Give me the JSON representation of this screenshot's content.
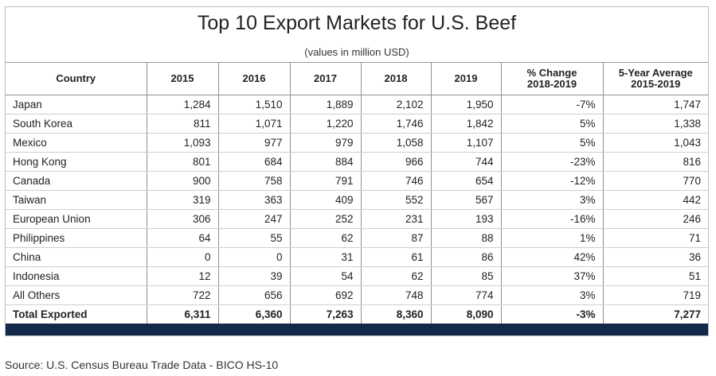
{
  "title": "Top 10 Export Markets for U.S. Beef",
  "subtitle": "(values in million USD)",
  "headers": {
    "country": "Country",
    "y2015": "2015",
    "y2016": "2016",
    "y2017": "2017",
    "y2018": "2018",
    "y2019": "2019",
    "pct_change_line1": "% Change",
    "pct_change_line2": "2018-2019",
    "avg_line1": "5-Year Average",
    "avg_line2": "2015-2019"
  },
  "rows": [
    {
      "country": "Japan",
      "y2015": "1,284",
      "y2016": "1,510",
      "y2017": "1,889",
      "y2018": "2,102",
      "y2019": "1,950",
      "pct": "-7%",
      "avg": "1,747"
    },
    {
      "country": "South Korea",
      "y2015": "811",
      "y2016": "1,071",
      "y2017": "1,220",
      "y2018": "1,746",
      "y2019": "1,842",
      "pct": "5%",
      "avg": "1,338"
    },
    {
      "country": "Mexico",
      "y2015": "1,093",
      "y2016": "977",
      "y2017": "979",
      "y2018": "1,058",
      "y2019": "1,107",
      "pct": "5%",
      "avg": "1,043"
    },
    {
      "country": "Hong Kong",
      "y2015": "801",
      "y2016": "684",
      "y2017": "884",
      "y2018": "966",
      "y2019": "744",
      "pct": "-23%",
      "avg": "816"
    },
    {
      "country": "Canada",
      "y2015": "900",
      "y2016": "758",
      "y2017": "791",
      "y2018": "746",
      "y2019": "654",
      "pct": "-12%",
      "avg": "770"
    },
    {
      "country": "Taiwan",
      "y2015": "319",
      "y2016": "363",
      "y2017": "409",
      "y2018": "552",
      "y2019": "567",
      "pct": "3%",
      "avg": "442"
    },
    {
      "country": "European Union",
      "y2015": "306",
      "y2016": "247",
      "y2017": "252",
      "y2018": "231",
      "y2019": "193",
      "pct": "-16%",
      "avg": "246"
    },
    {
      "country": "Philippines",
      "y2015": "64",
      "y2016": "55",
      "y2017": "62",
      "y2018": "87",
      "y2019": "88",
      "pct": "1%",
      "avg": "71"
    },
    {
      "country": "China",
      "y2015": "0",
      "y2016": "0",
      "y2017": "31",
      "y2018": "61",
      "y2019": "86",
      "pct": "42%",
      "avg": "36"
    },
    {
      "country": "Indonesia",
      "y2015": "12",
      "y2016": "39",
      "y2017": "54",
      "y2018": "62",
      "y2019": "85",
      "pct": "37%",
      "avg": "51"
    },
    {
      "country": "All Others",
      "y2015": "722",
      "y2016": "656",
      "y2017": "692",
      "y2018": "748",
      "y2019": "774",
      "pct": "3%",
      "avg": "719"
    }
  ],
  "total": {
    "country": "Total Exported",
    "y2015": "6,311",
    "y2016": "6,360",
    "y2017": "7,263",
    "y2018": "8,360",
    "y2019": "8,090",
    "pct": "-3%",
    "avg": "7,277"
  },
  "source": "Source: U.S. Census Bureau Trade Data - BICO HS-10",
  "colors": {
    "footer_bar": "#14294a"
  }
}
